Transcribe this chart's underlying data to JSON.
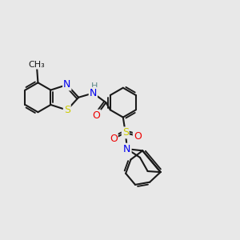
{
  "bg_color": "#e8e8e8",
  "bond_color": "#1a1a1a",
  "lw": 1.5,
  "dbl_off": 0.085,
  "colors": {
    "N": "#0000ee",
    "S": "#cccc00",
    "O": "#ee0000",
    "C": "#1a1a1a",
    "H_label": "#5c8888"
  },
  "fs": 8.5
}
